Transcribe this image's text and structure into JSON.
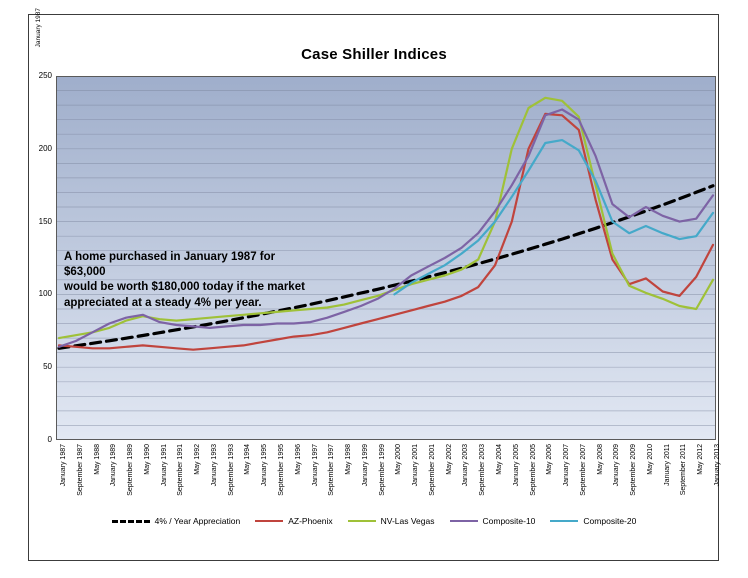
{
  "page": {
    "corner_artifact_label": "January 1987"
  },
  "annotation": {
    "lines": [
      "A home purchased in January 1987 for $63,000",
      "would be worth $180,000 today if the market",
      "appreciated at a steady 4% per year."
    ]
  },
  "chart_data": {
    "type": "line",
    "title": "Case Shiller Indices",
    "xlabel": "",
    "ylabel": "",
    "ylim": [
      0,
      250
    ],
    "y_tick_step_major": 50,
    "gridline_step": 10,
    "grid": true,
    "legend_position": "bottom",
    "plot_bg_top": "#9FAECB",
    "plot_bg_bottom": "#E2E8F3",
    "categories": [
      "January 1987",
      "September 1987",
      "May 1988",
      "January 1989",
      "September 1989",
      "May 1990",
      "January 1991",
      "September 1991",
      "May 1992",
      "January 1993",
      "September 1993",
      "May 1994",
      "January 1995",
      "September 1995",
      "May 1996",
      "January 1997",
      "September 1997",
      "May 1998",
      "January 1999",
      "September 1999",
      "May 2000",
      "January 2001",
      "September 2001",
      "May 2002",
      "January 2003",
      "September 2003",
      "May 2004",
      "January 2005",
      "September 2005",
      "May 2006",
      "January 2007",
      "September 2007",
      "May 2008",
      "January 2009",
      "September 2009",
      "May 2010",
      "January 2011",
      "September 2011",
      "May 2012",
      "January 2013"
    ],
    "series": [
      {
        "name": "4% / Year  Appreciation",
        "color": "#000000",
        "dashed": true,
        "width": 3.2,
        "values": [
          63,
          64.7,
          66.4,
          68.1,
          69.9,
          71.8,
          73.7,
          75.7,
          77.7,
          79.7,
          81.8,
          84,
          86.2,
          88.5,
          90.8,
          93.2,
          95.7,
          98.3,
          100.9,
          103.5,
          106.3,
          109.1,
          112,
          114.9,
          118,
          121.1,
          124.3,
          127.6,
          131,
          134.5,
          138,
          141.7,
          145.4,
          149.3,
          153.2,
          157.3,
          161.5,
          165.7,
          170.1,
          174.6
        ]
      },
      {
        "name": "AZ-Phoenix",
        "color": "#C0443D",
        "dashed": false,
        "width": 2.2,
        "values": [
          65,
          64,
          63,
          63,
          64,
          65,
          64,
          63,
          62,
          63,
          64,
          65,
          67,
          69,
          71,
          72,
          74,
          77,
          80,
          83,
          86,
          89,
          92,
          95,
          99,
          105,
          120,
          150,
          200,
          224,
          223,
          213,
          165,
          124,
          107,
          111,
          102,
          99,
          112,
          134
        ]
      },
      {
        "name": "NV-Las Vegas",
        "color": "#9FC138",
        "dashed": false,
        "width": 2.2,
        "values": [
          70,
          72,
          74,
          77,
          82,
          85,
          83,
          82,
          83,
          84,
          85,
          86,
          87,
          88,
          89,
          90,
          91,
          93,
          96,
          99,
          103,
          107,
          110,
          113,
          117,
          124,
          150,
          200,
          228,
          235,
          233,
          222,
          175,
          128,
          106,
          101,
          97,
          92,
          90,
          110
        ]
      },
      {
        "name": "Composite-10",
        "color": "#7D63A5",
        "dashed": false,
        "width": 2.2,
        "values": [
          64,
          68,
          74,
          80,
          84,
          86,
          81,
          79,
          78,
          77,
          78,
          79,
          79,
          80,
          80,
          81,
          84,
          88,
          92,
          97,
          104,
          113,
          119,
          125,
          132,
          142,
          157,
          175,
          195,
          223,
          227,
          220,
          195,
          162,
          153,
          160,
          154,
          150,
          152,
          168
        ]
      },
      {
        "name": "Composite-20",
        "color": "#45A9C9",
        "dashed": false,
        "width": 2.2,
        "values": [
          null,
          null,
          null,
          null,
          null,
          null,
          null,
          null,
          null,
          null,
          null,
          null,
          null,
          null,
          null,
          null,
          null,
          null,
          null,
          null,
          100,
          108,
          114,
          120,
          128,
          137,
          150,
          167,
          185,
          204,
          206,
          199,
          178,
          150,
          142,
          147,
          142,
          138,
          140,
          156
        ]
      }
    ]
  }
}
